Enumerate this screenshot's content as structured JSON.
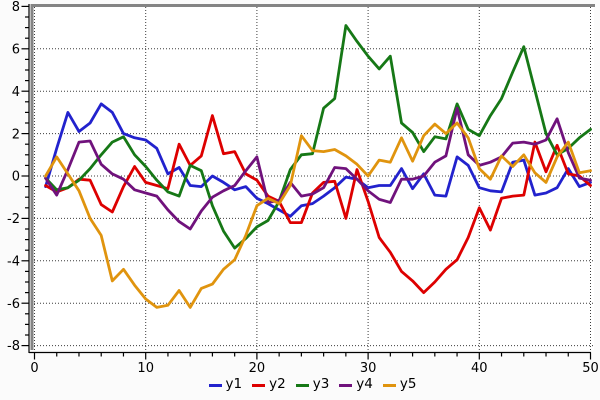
{
  "chart_data": {
    "type": "line",
    "title": "",
    "xlabel": "",
    "ylabel": "",
    "xlim": [
      -0.3,
      50.3
    ],
    "ylim": [
      -8.3,
      8.3
    ],
    "grid": "dotted lines at major ticks, both axes",
    "legend_position": "bottom-center",
    "x_major_ticks": [
      0,
      10,
      20,
      30,
      40,
      50
    ],
    "x_minor_step": 2,
    "y_major_ticks": [
      -8,
      -6,
      -4,
      -2,
      0,
      2,
      4,
      6,
      8
    ],
    "y_minor_step": 0.5,
    "x": [
      1,
      2,
      3,
      4,
      5,
      6,
      7,
      8,
      9,
      10,
      11,
      12,
      13,
      14,
      15,
      16,
      17,
      18,
      19,
      20,
      21,
      22,
      23,
      24,
      25,
      26,
      27,
      28,
      29,
      30,
      31,
      32,
      33,
      34,
      35,
      36,
      37,
      38,
      39,
      40,
      41,
      42,
      43,
      44,
      45,
      46,
      47,
      48,
      49,
      50
    ],
    "series": [
      {
        "name": "y1",
        "color": "#2222cd",
        "values": [
          -0.5,
          1.3,
          3.0,
          2.1,
          2.5,
          3.4,
          3.0,
          2.0,
          1.8,
          1.7,
          1.3,
          0.1,
          0.4,
          -0.45,
          -0.5,
          0.0,
          -0.3,
          -0.65,
          -0.5,
          -1.05,
          -1.3,
          -1.6,
          -1.9,
          -1.4,
          -1.3,
          -0.95,
          -0.55,
          -0.05,
          -0.15,
          -0.55,
          -0.45,
          -0.45,
          0.35,
          -0.6,
          0.1,
          -0.9,
          -0.95,
          0.9,
          0.5,
          -0.55,
          -0.7,
          -0.75,
          0.65,
          0.75,
          -0.9,
          -0.8,
          -0.55,
          0.35,
          -0.5,
          -0.3
        ]
      },
      {
        "name": "y2",
        "color": "#dd0000",
        "values": [
          -0.45,
          -0.75,
          -0.55,
          -0.15,
          -0.2,
          -1.35,
          -1.7,
          -0.5,
          0.45,
          -0.3,
          -0.45,
          -0.6,
          1.5,
          0.5,
          0.95,
          2.85,
          1.05,
          1.15,
          0.1,
          -0.2,
          -0.95,
          -1.2,
          -2.2,
          -2.2,
          -0.8,
          -0.3,
          -0.25,
          -2.0,
          0.3,
          -1.2,
          -2.9,
          -3.6,
          -4.5,
          -4.95,
          -5.5,
          -5.0,
          -4.4,
          -3.95,
          -2.9,
          -1.5,
          -2.55,
          -1.05,
          -0.95,
          -0.9,
          1.6,
          0.2,
          1.45,
          0.1,
          0.0,
          -0.45
        ]
      },
      {
        "name": "y3",
        "color": "#167816",
        "values": [
          -0.1,
          -0.65,
          -0.55,
          -0.2,
          0.35,
          1.0,
          1.6,
          1.85,
          1.0,
          0.45,
          -0.2,
          -0.75,
          -0.95,
          0.5,
          0.25,
          -1.4,
          -2.6,
          -3.4,
          -2.95,
          -2.4,
          -2.1,
          -1.2,
          0.3,
          1.0,
          1.05,
          3.2,
          3.65,
          7.1,
          6.35,
          5.65,
          5.05,
          5.65,
          2.5,
          2.05,
          1.15,
          1.85,
          1.75,
          3.4,
          2.2,
          1.9,
          2.85,
          3.65,
          4.9,
          6.1,
          4.05,
          2.0,
          1.0,
          1.3,
          1.8,
          2.2
        ]
      },
      {
        "name": "y4",
        "color": "#70127c",
        "values": [
          -0.1,
          -0.9,
          0.3,
          1.6,
          1.65,
          0.55,
          0.1,
          -0.15,
          -0.65,
          -0.8,
          -0.95,
          -1.6,
          -2.15,
          -2.5,
          -1.65,
          -1.0,
          -0.7,
          -0.45,
          0.25,
          0.9,
          -1.25,
          -1.15,
          -0.3,
          -0.95,
          -0.85,
          -0.55,
          0.4,
          0.35,
          -0.15,
          -0.7,
          -1.1,
          -1.25,
          -0.15,
          -0.15,
          0.0,
          0.65,
          0.95,
          3.2,
          1.0,
          0.5,
          0.65,
          0.9,
          1.55,
          1.6,
          1.5,
          1.7,
          2.7,
          1.1,
          -0.1,
          -0.2
        ]
      },
      {
        "name": "y5",
        "color": "#e0940e",
        "values": [
          0.0,
          0.9,
          0.1,
          -0.7,
          -2.0,
          -2.8,
          -4.95,
          -4.4,
          -5.15,
          -5.8,
          -6.2,
          -6.1,
          -5.4,
          -6.2,
          -5.3,
          -5.1,
          -4.4,
          -3.95,
          -2.8,
          -1.4,
          -1.05,
          -1.3,
          -0.45,
          1.9,
          1.2,
          1.15,
          1.25,
          0.95,
          0.55,
          0.0,
          0.75,
          0.65,
          1.8,
          0.7,
          1.9,
          2.45,
          2.0,
          2.5,
          1.8,
          0.35,
          -0.15,
          0.95,
          0.45,
          1.0,
          0.15,
          -0.3,
          0.9,
          1.6,
          0.15,
          0.25
        ]
      }
    ]
  },
  "axes": {
    "x_tick_labels": [
      "0",
      "10",
      "20",
      "30",
      "40",
      "50"
    ],
    "y_tick_labels": [
      "8",
      "6",
      "4",
      "2",
      "0",
      "-2",
      "-4",
      "-6",
      "-8"
    ]
  },
  "legend": {
    "entries": [
      {
        "label": "y1"
      },
      {
        "label": "y2"
      },
      {
        "label": "y3"
      },
      {
        "label": "y4"
      },
      {
        "label": "y5"
      }
    ]
  },
  "colors": {
    "frame": "#848484",
    "axis": "#000000",
    "gridline": "#3c3c3c",
    "plot_background": "#ffffff",
    "outer_background": "#fbfbfb"
  }
}
